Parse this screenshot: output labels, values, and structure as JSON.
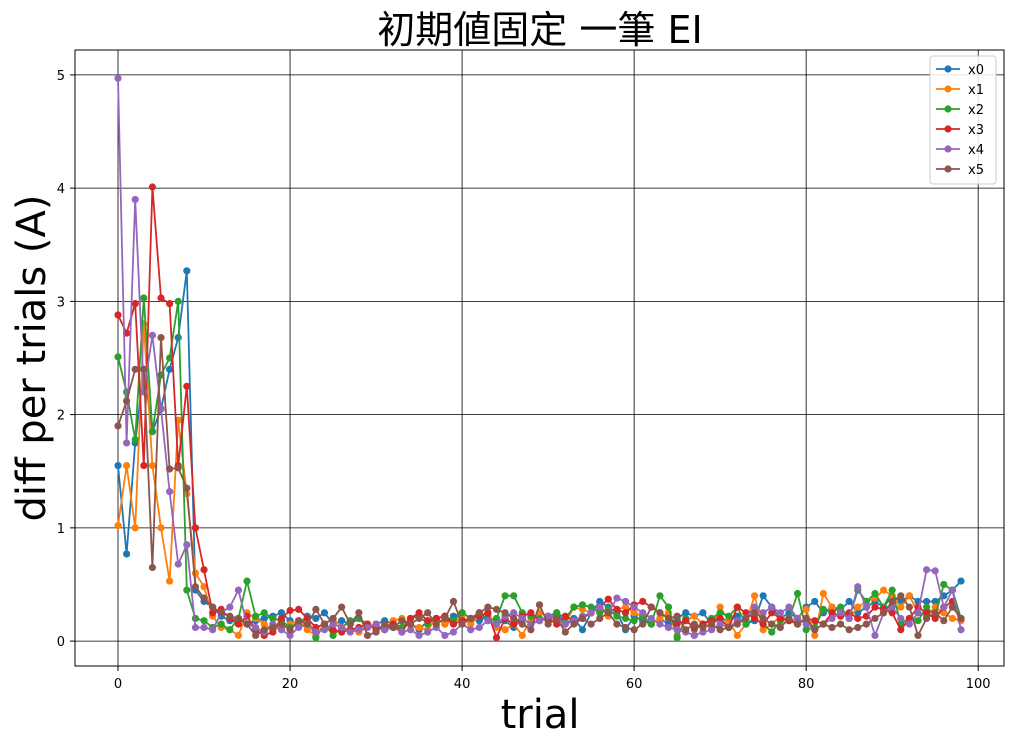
{
  "chart_data": {
    "type": "line",
    "title": "初期値固定 一筆 EI",
    "xlabel": "trial",
    "ylabel": "diff per trials (A)",
    "xlim": [
      -5,
      103
    ],
    "ylim": [
      -0.22,
      5.22
    ],
    "xticks": [
      0,
      20,
      40,
      60,
      80,
      100
    ],
    "yticks": [
      0,
      1,
      2,
      3,
      4,
      5
    ],
    "grid": true,
    "legend_position": "top-right",
    "markers": true,
    "series": [
      {
        "name": "x0",
        "color": "#1f77b4",
        "values": [
          1.55,
          0.77,
          1.75,
          2.4,
          1.85,
          2.05,
          2.4,
          2.68,
          3.27,
          0.45,
          0.35,
          0.3,
          0.22,
          0.18,
          0.2,
          0.15,
          0.18,
          0.2,
          0.22,
          0.25,
          0.18,
          0.15,
          0.22,
          0.2,
          0.25,
          0.15,
          0.18,
          0.15,
          0.2,
          0.12,
          0.15,
          0.18,
          0.15,
          0.12,
          0.15,
          0.1,
          0.18,
          0.2,
          0.15,
          0.22,
          0.25,
          0.2,
          0.18,
          0.22,
          0.15,
          0.18,
          0.12,
          0.2,
          0.15,
          0.18,
          0.22,
          0.25,
          0.15,
          0.2,
          0.1,
          0.25,
          0.35,
          0.3,
          0.25,
          0.1,
          0.22,
          0.18,
          0.15,
          0.2,
          0.15,
          0.2,
          0.25,
          0.22,
          0.25,
          0.15,
          0.2,
          0.18,
          0.22,
          0.15,
          0.18,
          0.4,
          0.3,
          0.2,
          0.25,
          0.2,
          0.3,
          0.35,
          0.25,
          0.3,
          0.28,
          0.35,
          0.25,
          0.3,
          0.35,
          0.3,
          0.4,
          0.35,
          0.4,
          0.35,
          0.35,
          0.35,
          0.4,
          0.45,
          0.53
        ]
      },
      {
        "name": "x1",
        "color": "#ff7f0e",
        "values": [
          1.02,
          1.55,
          1.0,
          2.8,
          1.55,
          1.0,
          0.53,
          1.95,
          1.3,
          0.6,
          0.48,
          0.22,
          0.12,
          0.1,
          0.05,
          0.25,
          0.2,
          0.15,
          0.1,
          0.12,
          0.15,
          0.18,
          0.1,
          0.05,
          0.15,
          0.2,
          0.12,
          0.1,
          0.08,
          0.12,
          0.15,
          0.1,
          0.18,
          0.2,
          0.15,
          0.12,
          0.1,
          0.2,
          0.15,
          0.18,
          0.2,
          0.15,
          0.22,
          0.25,
          0.12,
          0.1,
          0.15,
          0.05,
          0.2,
          0.25,
          0.22,
          0.18,
          0.15,
          0.3,
          0.28,
          0.25,
          0.3,
          0.22,
          0.28,
          0.3,
          0.25,
          0.22,
          0.15,
          0.2,
          0.25,
          0.05,
          0.18,
          0.22,
          0.15,
          0.12,
          0.3,
          0.18,
          0.05,
          0.15,
          0.4,
          0.1,
          0.15,
          0.22,
          0.18,
          0.2,
          0.28,
          0.05,
          0.42,
          0.3,
          0.25,
          0.2,
          0.3,
          0.35,
          0.38,
          0.45,
          0.4,
          0.3,
          0.4,
          0.25,
          0.22,
          0.3,
          0.25,
          0.2,
          0.18
        ]
      },
      {
        "name": "x2",
        "color": "#2ca02c",
        "values": [
          2.51,
          2.2,
          1.78,
          3.03,
          1.85,
          2.35,
          2.5,
          3.0,
          0.45,
          0.2,
          0.18,
          0.12,
          0.15,
          0.1,
          0.2,
          0.53,
          0.22,
          0.25,
          0.2,
          0.18,
          0.12,
          0.15,
          0.2,
          0.03,
          0.15,
          0.05,
          0.12,
          0.18,
          0.2,
          0.15,
          0.12,
          0.1,
          0.15,
          0.12,
          0.2,
          0.22,
          0.15,
          0.2,
          0.22,
          0.18,
          0.25,
          0.2,
          0.25,
          0.18,
          0.2,
          0.4,
          0.4,
          0.25,
          0.22,
          0.2,
          0.18,
          0.25,
          0.2,
          0.3,
          0.32,
          0.3,
          0.25,
          0.28,
          0.22,
          0.2,
          0.18,
          0.22,
          0.15,
          0.4,
          0.3,
          0.03,
          0.2,
          0.1,
          0.15,
          0.2,
          0.25,
          0.22,
          0.3,
          0.15,
          0.2,
          0.15,
          0.08,
          0.18,
          0.2,
          0.42,
          0.1,
          0.12,
          0.28,
          0.25,
          0.3,
          0.2,
          0.45,
          0.35,
          0.42,
          0.3,
          0.45,
          0.15,
          0.2,
          0.18,
          0.3,
          0.22,
          0.5,
          0.45,
          0.2
        ]
      },
      {
        "name": "x3",
        "color": "#d62728",
        "values": [
          2.88,
          2.72,
          2.98,
          1.55,
          4.01,
          3.03,
          2.98,
          1.55,
          2.25,
          1.0,
          0.63,
          0.25,
          0.28,
          0.2,
          0.15,
          0.22,
          0.1,
          0.05,
          0.08,
          0.2,
          0.27,
          0.28,
          0.2,
          0.12,
          0.15,
          0.1,
          0.08,
          0.1,
          0.12,
          0.15,
          0.1,
          0.12,
          0.15,
          0.08,
          0.2,
          0.25,
          0.18,
          0.2,
          0.22,
          0.15,
          0.18,
          0.2,
          0.22,
          0.25,
          0.03,
          0.2,
          0.15,
          0.22,
          0.25,
          0.18,
          0.2,
          0.15,
          0.22,
          0.18,
          0.2,
          0.25,
          0.3,
          0.37,
          0.28,
          0.25,
          0.32,
          0.35,
          0.3,
          0.25,
          0.2,
          0.15,
          0.18,
          0.12,
          0.15,
          0.18,
          0.2,
          0.12,
          0.3,
          0.25,
          0.2,
          0.15,
          0.25,
          0.2,
          0.18,
          0.15,
          0.2,
          0.18,
          0.15,
          0.25,
          0.22,
          0.25,
          0.2,
          0.22,
          0.3,
          0.28,
          0.25,
          0.1,
          0.2,
          0.3,
          0.25,
          0.2,
          0.3,
          0.35,
          0.2
        ]
      },
      {
        "name": "x4",
        "color": "#9467bd",
        "values": [
          4.97,
          1.75,
          3.9,
          2.2,
          2.7,
          2.05,
          1.32,
          0.68,
          0.85,
          0.12,
          0.12,
          0.1,
          0.25,
          0.3,
          0.45,
          0.15,
          0.12,
          0.08,
          0.15,
          0.1,
          0.05,
          0.12,
          0.15,
          0.08,
          0.1,
          0.15,
          0.12,
          0.08,
          0.1,
          0.12,
          0.15,
          0.1,
          0.12,
          0.08,
          0.1,
          0.05,
          0.08,
          0.12,
          0.05,
          0.08,
          0.15,
          0.1,
          0.12,
          0.18,
          0.15,
          0.22,
          0.25,
          0.2,
          0.15,
          0.18,
          0.22,
          0.2,
          0.15,
          0.18,
          0.22,
          0.25,
          0.3,
          0.25,
          0.38,
          0.35,
          0.3,
          0.25,
          0.2,
          0.15,
          0.12,
          0.1,
          0.08,
          0.05,
          0.08,
          0.1,
          0.15,
          0.12,
          0.18,
          0.2,
          0.3,
          0.25,
          0.3,
          0.25,
          0.3,
          0.2,
          0.15,
          0.1,
          0.15,
          0.2,
          0.25,
          0.2,
          0.48,
          0.3,
          0.05,
          0.25,
          0.3,
          0.2,
          0.15,
          0.25,
          0.63,
          0.62,
          0.3,
          0.45,
          0.1
        ]
      },
      {
        "name": "x5",
        "color": "#8c564b",
        "values": [
          1.9,
          2.12,
          2.4,
          2.4,
          0.65,
          2.68,
          1.52,
          1.53,
          1.35,
          0.48,
          0.38,
          0.3,
          0.25,
          0.22,
          0.2,
          0.15,
          0.05,
          0.1,
          0.12,
          0.15,
          0.1,
          0.18,
          0.15,
          0.28,
          0.15,
          0.2,
          0.3,
          0.15,
          0.25,
          0.05,
          0.08,
          0.15,
          0.12,
          0.18,
          0.15,
          0.2,
          0.25,
          0.15,
          0.2,
          0.35,
          0.15,
          0.2,
          0.25,
          0.3,
          0.28,
          0.25,
          0.2,
          0.15,
          0.1,
          0.32,
          0.15,
          0.2,
          0.08,
          0.15,
          0.2,
          0.15,
          0.2,
          0.25,
          0.15,
          0.12,
          0.1,
          0.15,
          0.3,
          0.25,
          0.2,
          0.22,
          0.1,
          0.15,
          0.12,
          0.15,
          0.1,
          0.12,
          0.15,
          0.2,
          0.25,
          0.2,
          0.15,
          0.12,
          0.2,
          0.15,
          0.2,
          0.1,
          0.15,
          0.12,
          0.15,
          0.1,
          0.12,
          0.15,
          0.2,
          0.25,
          0.35,
          0.4,
          0.3,
          0.05,
          0.2,
          0.25,
          0.18,
          0.3,
          0.2
        ]
      }
    ]
  }
}
